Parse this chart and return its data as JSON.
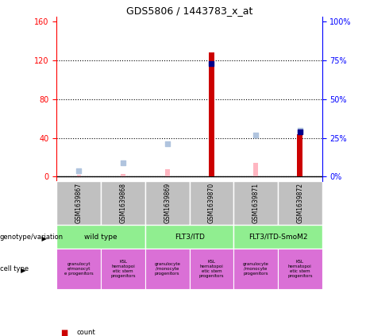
{
  "title": "GDS5806 / 1443783_x_at",
  "samples": [
    "GSM1639867",
    "GSM1639868",
    "GSM1639869",
    "GSM1639870",
    "GSM1639871",
    "GSM1639872"
  ],
  "count_values": [
    0,
    0,
    0,
    128,
    0,
    44
  ],
  "rank_values": [
    0,
    0,
    0,
    73,
    0,
    0
  ],
  "absent_value_values": [
    2,
    3,
    8,
    0,
    14,
    0
  ],
  "absent_rank_values": [
    4,
    9,
    21,
    0,
    27,
    30
  ],
  "rank_present_values": [
    0,
    0,
    0,
    0,
    0,
    29
  ],
  "ylim_left": [
    -5,
    165
  ],
  "ylim_right": [
    -3.125,
    103.125
  ],
  "yticks_left": [
    0,
    40,
    80,
    120,
    160
  ],
  "ytick_labels_left": [
    "0",
    "40",
    "80",
    "120",
    "160"
  ],
  "ytick_labels_right": [
    "0%",
    "25%",
    "50%",
    "75%",
    "100%"
  ],
  "genotype_groups": [
    {
      "label": "wild type",
      "span": [
        0,
        2
      ],
      "color": "#90EE90"
    },
    {
      "label": "FLT3/ITD",
      "span": [
        2,
        4
      ],
      "color": "#90EE90"
    },
    {
      "label": "FLT3/ITD-SmoM2",
      "span": [
        4,
        6
      ],
      "color": "#90EE90"
    }
  ],
  "cell_type_groups": [
    {
      "label": "granulocyt\ne/monocyt\ne progenitors",
      "span": [
        0,
        1
      ],
      "color": "#DA70D6"
    },
    {
      "label": "KSL\nhematopoi\netic stem\nprogenitors",
      "span": [
        1,
        2
      ],
      "color": "#DA70D6"
    },
    {
      "label": "granulocyte\n/monocyte\nprogenitors",
      "span": [
        2,
        3
      ],
      "color": "#DA70D6"
    },
    {
      "label": "KSL\nhematopoi\netic stem\nprogenitors",
      "span": [
        3,
        4
      ],
      "color": "#DA70D6"
    },
    {
      "label": "granulocyte\n/monocyte\nprogenitors",
      "span": [
        4,
        5
      ],
      "color": "#DA70D6"
    },
    {
      "label": "KSL\nhematopoi\netic stem\nprogenitors",
      "span": [
        5,
        6
      ],
      "color": "#DA70D6"
    }
  ],
  "count_color": "#CC0000",
  "rank_color": "#00008B",
  "absent_value_color": "#FFB6C1",
  "absent_rank_color": "#B0C4DE",
  "sample_bg_color": "#C0C0C0",
  "grid_color": "black"
}
